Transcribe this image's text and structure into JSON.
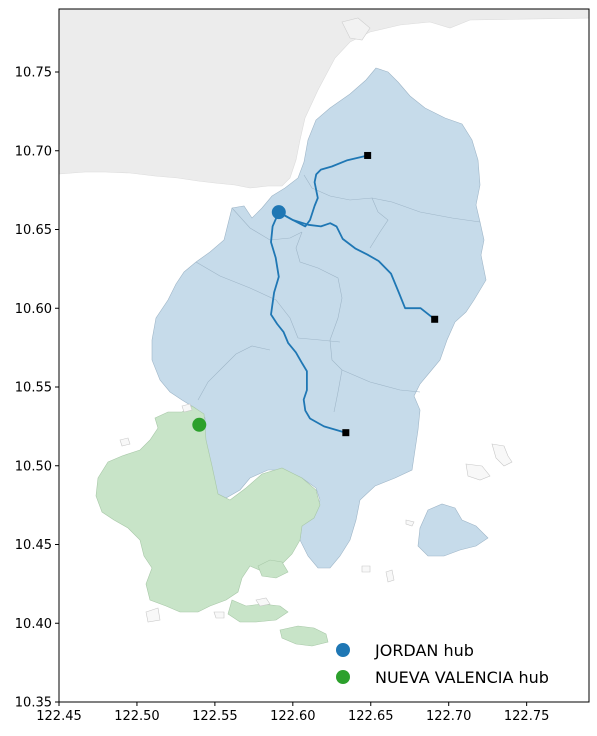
{
  "chart_data": {
    "type": "map",
    "xlim": [
      122.45,
      122.79
    ],
    "ylim": [
      10.35,
      10.79
    ],
    "x_ticks": [
      "122.45",
      "122.50",
      "122.55",
      "122.60",
      "122.65",
      "122.70",
      "122.75"
    ],
    "y_ticks": [
      "10.35",
      "10.40",
      "10.45",
      "10.50",
      "10.55",
      "10.60",
      "10.65",
      "10.70",
      "10.75"
    ],
    "hubs": [
      {
        "name": "JORDAN hub",
        "label": "JORDAN hub",
        "lon": 122.591,
        "lat": 10.661,
        "color": "#1f77b4"
      },
      {
        "name": "NUEVA VALENCIA hub",
        "label": "NUEVA VALENCIA hub",
        "lon": 122.54,
        "lat": 10.526,
        "color": "#2ca02c"
      }
    ],
    "destinations": [
      {
        "lon": 122.648,
        "lat": 10.697
      },
      {
        "lon": 122.691,
        "lat": 10.593
      },
      {
        "lon": 122.634,
        "lat": 10.521
      }
    ],
    "routes": [
      {
        "from": "JORDAN hub",
        "path": [
          [
            122.591,
            10.661
          ],
          [
            122.6,
            10.656
          ],
          [
            122.608,
            10.652
          ],
          [
            122.611,
            10.656
          ],
          [
            122.614,
            10.665
          ],
          [
            122.616,
            10.67
          ],
          [
            122.614,
            10.68
          ],
          [
            122.615,
            10.685
          ],
          [
            122.618,
            10.688
          ],
          [
            122.625,
            10.69
          ],
          [
            122.635,
            10.694
          ],
          [
            122.648,
            10.697
          ]
        ]
      },
      {
        "from": "JORDAN hub",
        "path": [
          [
            122.591,
            10.661
          ],
          [
            122.6,
            10.656
          ],
          [
            122.61,
            10.653
          ],
          [
            122.618,
            10.652
          ],
          [
            122.624,
            10.654
          ],
          [
            122.628,
            10.652
          ],
          [
            122.632,
            10.644
          ],
          [
            122.64,
            10.638
          ],
          [
            122.648,
            10.634
          ],
          [
            122.655,
            10.63
          ],
          [
            122.663,
            10.622
          ],
          [
            122.668,
            10.61
          ],
          [
            122.672,
            10.6
          ],
          [
            122.682,
            10.6
          ],
          [
            122.691,
            10.593
          ]
        ]
      },
      {
        "from": "JORDAN hub",
        "path": [
          [
            122.591,
            10.661
          ],
          [
            122.587,
            10.652
          ],
          [
            122.586,
            10.642
          ],
          [
            122.589,
            10.632
          ],
          [
            122.591,
            10.62
          ],
          [
            122.588,
            10.61
          ],
          [
            122.586,
            10.596
          ],
          [
            122.59,
            10.59
          ],
          [
            122.594,
            10.585
          ],
          [
            122.597,
            10.578
          ],
          [
            122.602,
            10.572
          ],
          [
            122.606,
            10.565
          ],
          [
            122.609,
            10.56
          ],
          [
            122.609,
            10.548
          ],
          [
            122.607,
            10.542
          ],
          [
            122.608,
            10.535
          ],
          [
            122.611,
            10.53
          ],
          [
            122.62,
            10.525
          ],
          [
            122.634,
            10.521
          ]
        ]
      }
    ],
    "legend": {
      "location": "lower-right"
    }
  }
}
